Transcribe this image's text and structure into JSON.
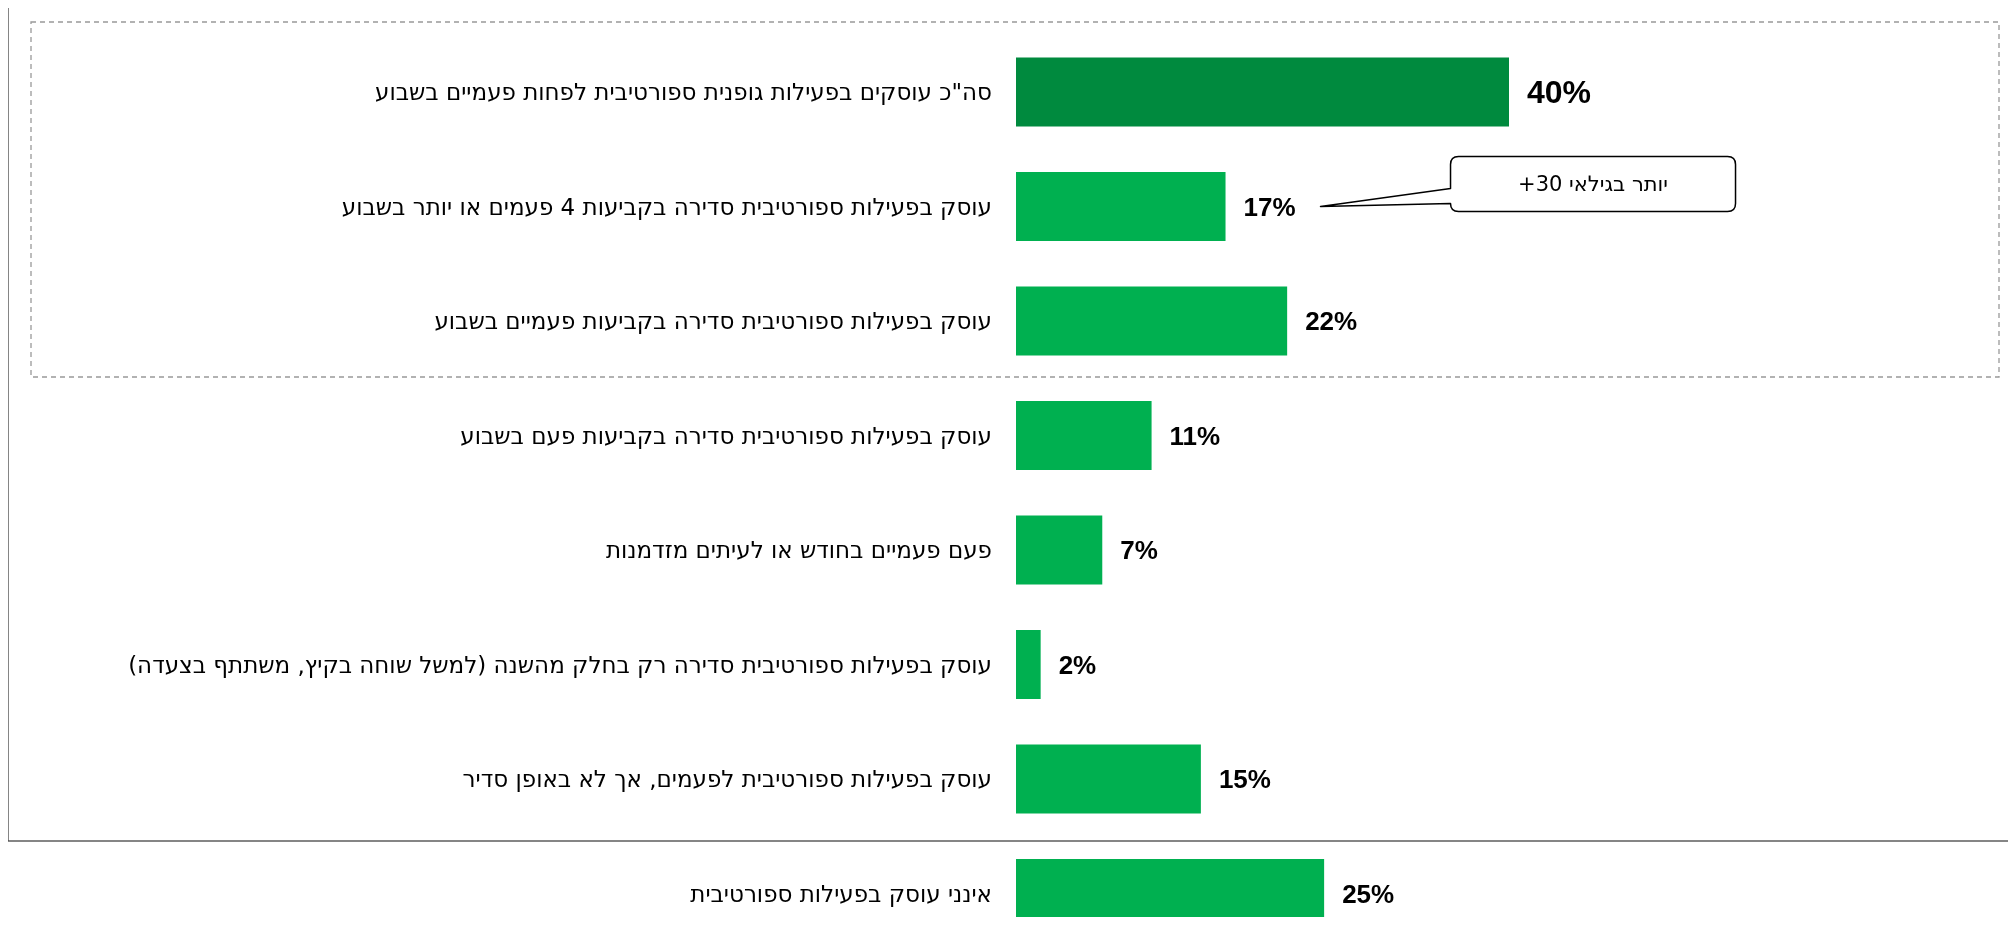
{
  "chart_data": {
    "type": "bar",
    "orientation": "horizontal",
    "relative": false,
    "categories": [
      "סה\"כ עוסקים בפעילות גופנית ספורטיבית לפחות פעמיים בשבוע",
      "עוסק בפעילות ספורטיבית סדירה בקביעות 4 פעמים או יותר בשבוע",
      "עוסק בפעילות ספורטיבית סדירה בקביעות פעמיים בשבוע",
      "עוסק בפעילות ספורטיבית סדירה בקביעות פעם בשבוע",
      "פעם פעמיים בחודש או לעיתים מזדמנות",
      "עוסק בפעילות ספורטיבית סדירה רק בחלק מהשנה (למשל שוחה בקיץ, משתתף בצעדה)",
      "עוסק בפעילות ספורטיבית לפעמים, אך לא באופן סדיר",
      "אינני עוסק בפעילות ספורטיבית"
    ],
    "values": [
      40,
      17,
      22,
      11,
      7,
      2,
      15,
      25
    ],
    "value_labels": [
      "40%",
      "17%",
      "22%",
      "11%",
      "7%",
      "2%",
      "15%",
      "25%"
    ],
    "colors": [
      "#008a3e",
      "#00b050",
      "#00b050",
      "#00b050",
      "#00b050",
      "#00b050",
      "#00b050",
      "#00b050"
    ],
    "annotations": [
      "יותר בגילאי 30+"
    ]
  }
}
